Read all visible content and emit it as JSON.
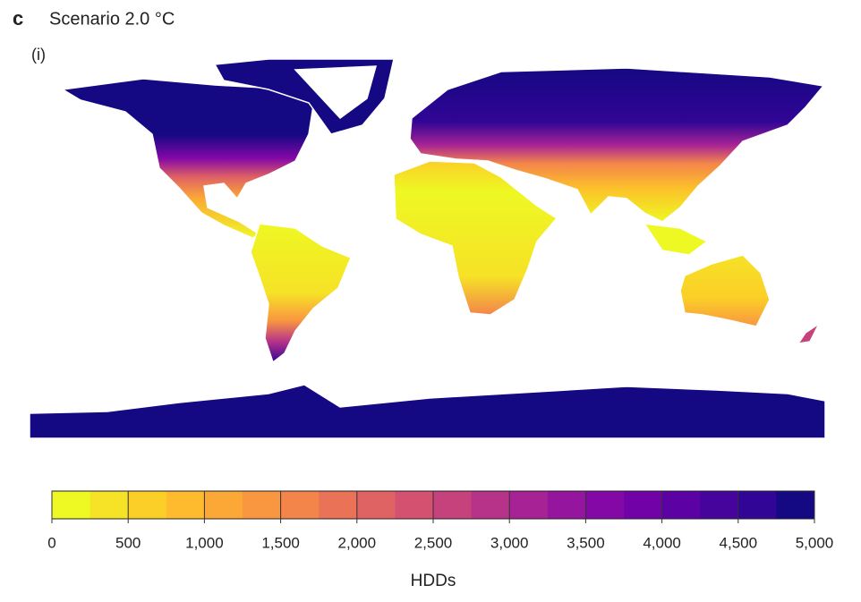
{
  "panel_label": "c",
  "title": "Scenario 2.0 °C",
  "subpanel": "(i)",
  "colorbar": {
    "label": "HDDs",
    "lim": [
      0,
      5000
    ],
    "ticks": [
      0,
      500,
      {
        "value": 1000,
        "label": "1,000"
      },
      {
        "value": 1500,
        "label": "1,500"
      },
      {
        "value": 2000,
        "label": "2,000"
      },
      {
        "value": 2500,
        "label": "2,500"
      },
      {
        "value": 3000,
        "label": "3,000"
      },
      {
        "value": 3500,
        "label": "3,500"
      },
      {
        "value": 4000,
        "label": "4,000"
      },
      {
        "value": 4500,
        "label": "4,500"
      },
      {
        "value": 5000,
        "label": "5,000"
      }
    ],
    "colors": [
      "#eef823",
      "#f6e226",
      "#fbcf27",
      "#fdbb2d",
      "#fca836",
      "#f99640",
      "#f3854b",
      "#ea7357",
      "#e06363",
      "#d4526f",
      "#c6427c",
      "#b73389",
      "#a72395",
      "#96159f",
      "#8408a6",
      "#7002a8",
      "#5c02a5",
      "#47049d",
      "#310595",
      "#150883"
    ]
  }
}
